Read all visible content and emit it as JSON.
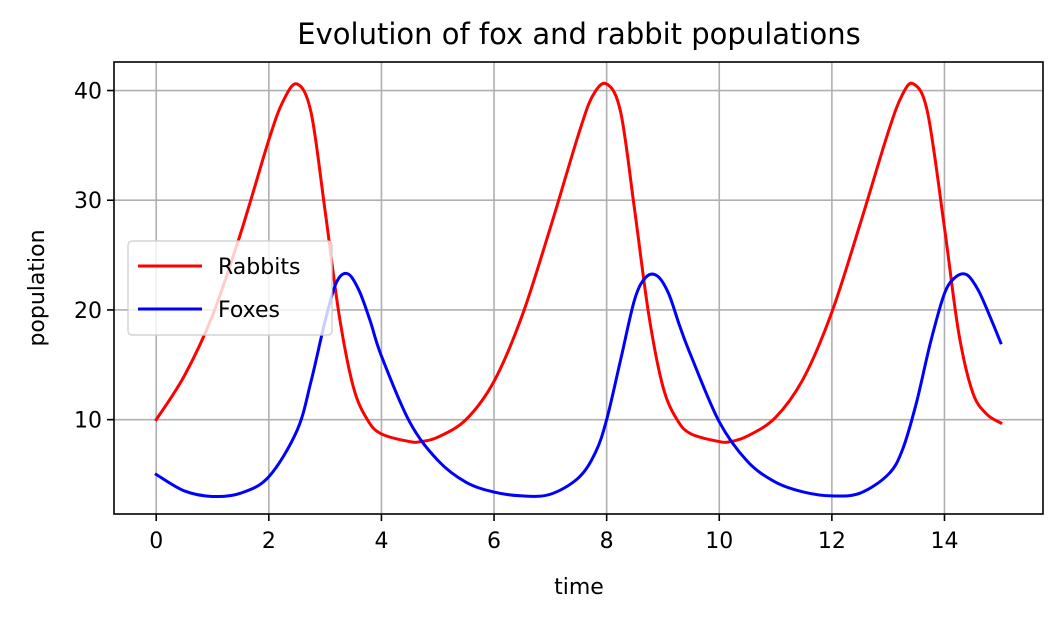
{
  "chart_data": {
    "type": "line",
    "title": "Evolution of fox and rabbit populations",
    "xlabel": "time",
    "ylabel": "population",
    "xlim": [
      -0.75,
      15.75
    ],
    "ylim": [
      1.4,
      42.6
    ],
    "xticks": [
      0,
      2,
      4,
      6,
      8,
      10,
      12,
      14
    ],
    "yticks": [
      10,
      20,
      30,
      40
    ],
    "grid": true,
    "legend_position": "center-left",
    "series": [
      {
        "name": "Rabbits",
        "color": "#ff0000",
        "x": [
          0,
          0.5,
          1.0,
          1.5,
          2.0,
          2.25,
          2.5,
          2.75,
          3.0,
          3.25,
          3.5,
          3.75,
          4.0,
          4.5,
          4.7,
          5.0,
          5.5,
          6.0,
          6.5,
          7.0,
          7.5,
          7.75,
          8.0,
          8.25,
          8.5,
          8.75,
          9.0,
          9.25,
          9.5,
          10.0,
          10.2,
          10.5,
          11.0,
          11.5,
          12.0,
          12.5,
          13.0,
          13.25,
          13.45,
          13.7,
          14.0,
          14.25,
          14.5,
          14.75,
          15.0
        ],
        "values": [
          10.0,
          14.0,
          19.5,
          27.0,
          35.5,
          39.0,
          40.6,
          38.0,
          29.0,
          19.5,
          13.0,
          10.0,
          8.7,
          8.0,
          8.0,
          8.4,
          10.0,
          13.5,
          19.5,
          27.5,
          36.0,
          39.5,
          40.6,
          38.0,
          29.0,
          19.5,
          13.0,
          10.0,
          8.7,
          8.0,
          8.0,
          8.5,
          10.2,
          13.8,
          19.8,
          27.8,
          36.2,
          39.6,
          40.6,
          38.0,
          27.5,
          18.0,
          12.5,
          10.5,
          9.7
        ]
      },
      {
        "name": "Foxes",
        "color": "#0000ff",
        "x": [
          0,
          0.5,
          1.0,
          1.5,
          2.0,
          2.5,
          2.75,
          3.0,
          3.2,
          3.4,
          3.6,
          3.8,
          4.0,
          4.5,
          5.0,
          5.5,
          6.0,
          6.5,
          7.0,
          7.5,
          7.8,
          8.0,
          8.25,
          8.5,
          8.7,
          8.9,
          9.1,
          9.3,
          9.5,
          10.0,
          10.5,
          11.0,
          11.5,
          12.0,
          12.5,
          13.0,
          13.25,
          13.5,
          13.75,
          14.0,
          14.2,
          14.4,
          14.6,
          14.8,
          15.0
        ],
        "values": [
          5.0,
          3.5,
          3.0,
          3.3,
          4.8,
          9.0,
          13.5,
          19.0,
          22.5,
          23.3,
          21.8,
          19.0,
          15.8,
          9.8,
          6.3,
          4.3,
          3.4,
          3.05,
          3.2,
          4.7,
          7.0,
          10.0,
          15.5,
          21.0,
          23.0,
          23.1,
          21.5,
          18.5,
          15.8,
          9.8,
          6.2,
          4.3,
          3.4,
          3.05,
          3.3,
          5.0,
          7.2,
          11.5,
          17.0,
          21.5,
          23.0,
          23.2,
          21.8,
          19.5,
          17.0
        ]
      }
    ]
  }
}
